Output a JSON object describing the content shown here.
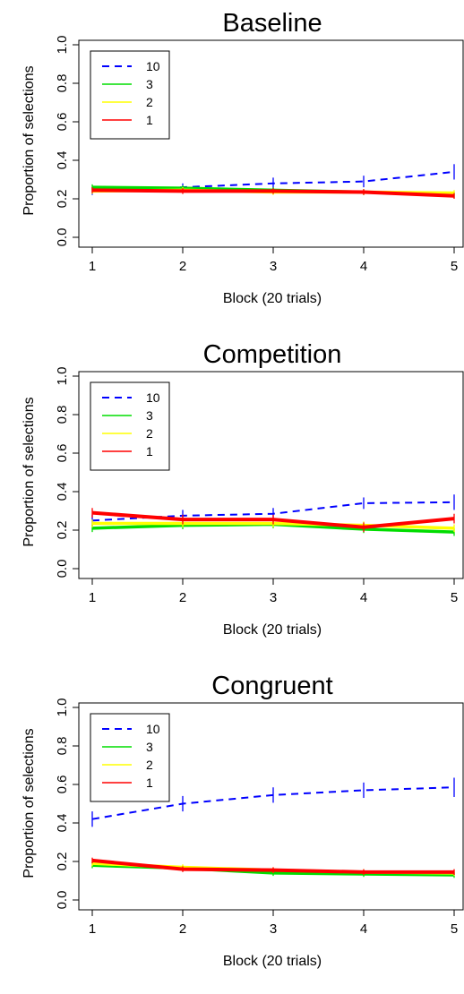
{
  "chart_data": [
    {
      "type": "line",
      "title": "Baseline",
      "xlabel": "Block (20 trials)",
      "ylabel": "Proportion of selections",
      "x": [
        1,
        2,
        3,
        4,
        5
      ],
      "xticks": [
        "1",
        "2",
        "3",
        "4",
        "5"
      ],
      "ylim": [
        0,
        1
      ],
      "yticks": [
        "0.0",
        "0.2",
        "0.4",
        "0.6",
        "0.8",
        "1.0"
      ],
      "grid": false,
      "legend_position": "top-left",
      "series": [
        {
          "name": "10",
          "color": "#0000ff",
          "style": "dashed",
          "values": [
            0.24,
            0.26,
            0.28,
            0.29,
            0.34
          ],
          "error": [
            0.02,
            0.02,
            0.03,
            0.03,
            0.04
          ]
        },
        {
          "name": "3",
          "color": "#00dd00",
          "style": "solid",
          "values": [
            0.26,
            0.255,
            0.245,
            0.235,
            0.22
          ],
          "error": [
            0.015,
            0.015,
            0.015,
            0.015,
            0.015
          ]
        },
        {
          "name": "2",
          "color": "#ffff00",
          "style": "solid",
          "values": [
            0.24,
            0.245,
            0.235,
            0.235,
            0.23
          ],
          "error": [
            0.015,
            0.015,
            0.015,
            0.015,
            0.015
          ]
        },
        {
          "name": "1",
          "color": "#ff0000",
          "style": "solid",
          "values": [
            0.245,
            0.24,
            0.24,
            0.235,
            0.215
          ],
          "error": [
            0.015,
            0.015,
            0.015,
            0.015,
            0.015
          ]
        }
      ]
    },
    {
      "type": "line",
      "title": "Competition",
      "xlabel": "Block (20 trials)",
      "ylabel": "Proportion of selections",
      "x": [
        1,
        2,
        3,
        4,
        5
      ],
      "xticks": [
        "1",
        "2",
        "3",
        "4",
        "5"
      ],
      "ylim": [
        0,
        1
      ],
      "yticks": [
        "0.0",
        "0.2",
        "0.4",
        "0.6",
        "0.8",
        "1.0"
      ],
      "grid": false,
      "legend_position": "top-left",
      "series": [
        {
          "name": "10",
          "color": "#0000ff",
          "style": "dashed",
          "values": [
            0.25,
            0.275,
            0.285,
            0.34,
            0.345
          ],
          "error": [
            0.03,
            0.03,
            0.03,
            0.03,
            0.04
          ]
        },
        {
          "name": "3",
          "color": "#00dd00",
          "style": "solid",
          "values": [
            0.21,
            0.225,
            0.23,
            0.205,
            0.19
          ],
          "error": [
            0.02,
            0.02,
            0.02,
            0.02,
            0.02
          ]
        },
        {
          "name": "2",
          "color": "#ffff00",
          "style": "solid",
          "values": [
            0.235,
            0.235,
            0.235,
            0.225,
            0.21
          ],
          "error": [
            0.02,
            0.02,
            0.02,
            0.02,
            0.02
          ]
        },
        {
          "name": "1",
          "color": "#ff0000",
          "style": "solid",
          "values": [
            0.29,
            0.255,
            0.255,
            0.215,
            0.26
          ],
          "error": [
            0.025,
            0.025,
            0.025,
            0.025,
            0.025
          ]
        }
      ]
    },
    {
      "type": "line",
      "title": "Congruent",
      "xlabel": "Block (20 trials)",
      "ylabel": "Proportion of selections",
      "x": [
        1,
        2,
        3,
        4,
        5
      ],
      "xticks": [
        "1",
        "2",
        "3",
        "4",
        "5"
      ],
      "ylim": [
        0,
        1
      ],
      "yticks": [
        "0.0",
        "0.2",
        "0.4",
        "0.6",
        "0.8",
        "1.0"
      ],
      "grid": false,
      "legend_position": "top-left",
      "series": [
        {
          "name": "10",
          "color": "#0000ff",
          "style": "dashed",
          "values": [
            0.42,
            0.5,
            0.545,
            0.57,
            0.585
          ],
          "error": [
            0.04,
            0.04,
            0.04,
            0.04,
            0.05
          ]
        },
        {
          "name": "3",
          "color": "#00dd00",
          "style": "solid",
          "values": [
            0.18,
            0.165,
            0.14,
            0.135,
            0.13
          ],
          "error": [
            0.015,
            0.015,
            0.015,
            0.015,
            0.015
          ]
        },
        {
          "name": "2",
          "color": "#ffff00",
          "style": "solid",
          "values": [
            0.19,
            0.17,
            0.155,
            0.145,
            0.14
          ],
          "error": [
            0.015,
            0.015,
            0.015,
            0.015,
            0.015
          ]
        },
        {
          "name": "1",
          "color": "#ff0000",
          "style": "solid",
          "values": [
            0.205,
            0.16,
            0.155,
            0.145,
            0.145
          ],
          "error": [
            0.015,
            0.015,
            0.015,
            0.015,
            0.015
          ]
        }
      ]
    }
  ]
}
